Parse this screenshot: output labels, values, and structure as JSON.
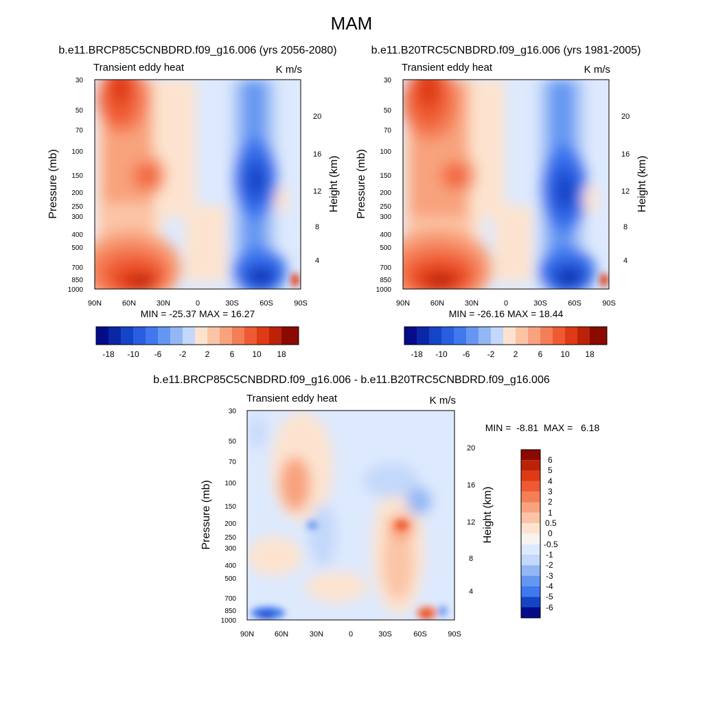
{
  "page": {
    "title": "MAM",
    "colors": {
      "blues": [
        "#050c8a",
        "#0b27a6",
        "#1545c6",
        "#2a5ee0",
        "#3f78ef",
        "#6597f2",
        "#93b7f5",
        "#c3d8fa",
        "#dde9fd"
      ],
      "reds": [
        "#fde3cf",
        "#fbc4a6",
        "#f8a37d",
        "#f47e56",
        "#ee5a33",
        "#de3a16",
        "#bb2208",
        "#8b0a00"
      ],
      "neutral": "#f7f3ee"
    }
  },
  "chart_data": [
    {
      "type": "heatmap",
      "subtitle": "b.e11.BRCP85C5CNBDRD.f09_g16.006 (yrs 2056-2080)",
      "left_label": "Transient eddy heat",
      "right_label": "K m/s",
      "ylabel": "Pressure (mb)",
      "y2label": "Height (km)",
      "x_ticks": [
        "90N",
        "60N",
        "30N",
        "0",
        "30S",
        "60S",
        "90S"
      ],
      "y_ticks": [
        "30",
        "50",
        "70",
        "100",
        "150",
        "200",
        "250",
        "300",
        "400",
        "500",
        "700",
        "850",
        "1000"
      ],
      "y2_ticks": [
        "20",
        "16",
        "12",
        "8",
        "4"
      ],
      "stats": "MIN = -25.37  MAX = 16.27",
      "colorbar_labels": [
        "-18",
        "-10",
        "-6",
        "-2",
        "2",
        "6",
        "10",
        "18"
      ],
      "features": [
        {
          "lat": 70,
          "p": 35,
          "value": 14
        },
        {
          "lat": 50,
          "p": 150,
          "value": 12
        },
        {
          "lat": 55,
          "p": 850,
          "value": 16
        },
        {
          "lat": -50,
          "p": 150,
          "value": -25
        },
        {
          "lat": -50,
          "p": 850,
          "value": -22
        }
      ]
    },
    {
      "type": "heatmap",
      "subtitle": "b.e11.B20TRC5CNBDRD.f09_g16.006 (yrs 1981-2005)",
      "left_label": "Transient eddy heat",
      "right_label": "K m/s",
      "ylabel": "Pressure (mb)",
      "y2label": "Height (km)",
      "x_ticks": [
        "90N",
        "60N",
        "30N",
        "0",
        "30S",
        "60S",
        "90S"
      ],
      "y_ticks": [
        "30",
        "50",
        "70",
        "100",
        "150",
        "200",
        "250",
        "300",
        "400",
        "500",
        "700",
        "850",
        "1000"
      ],
      "y2_ticks": [
        "20",
        "16",
        "12",
        "8",
        "4"
      ],
      "stats": "MIN = -26.16  MAX = 18.44",
      "colorbar_labels": [
        "-18",
        "-10",
        "-6",
        "-2",
        "2",
        "6",
        "10",
        "18"
      ],
      "features": [
        {
          "lat": 70,
          "p": 35,
          "value": 16
        },
        {
          "lat": 50,
          "p": 150,
          "value": 13
        },
        {
          "lat": 55,
          "p": 850,
          "value": 18
        },
        {
          "lat": -50,
          "p": 150,
          "value": -26
        },
        {
          "lat": -50,
          "p": 850,
          "value": -24
        }
      ]
    },
    {
      "type": "heatmap",
      "subtitle": "b.e11.BRCP85C5CNBDRD.f09_g16.006 - b.e11.B20TRC5CNBDRD.f09_g16.006",
      "left_label": "Transient eddy heat",
      "right_label": "K m/s",
      "ylabel": "Pressure (mb)",
      "y2label": "Height (km)",
      "x_ticks": [
        "90N",
        "60N",
        "30N",
        "0",
        "30S",
        "60S",
        "90S"
      ],
      "y_ticks": [
        "30",
        "50",
        "70",
        "100",
        "150",
        "200",
        "250",
        "300",
        "400",
        "500",
        "700",
        "850",
        "1000"
      ],
      "y2_ticks": [
        "20",
        "16",
        "12",
        "8",
        "4"
      ],
      "stats": "MIN =  -8.81  MAX =   6.18",
      "colorbar_labels": [
        "6",
        "5",
        "4",
        "3",
        "2",
        "1",
        "0.5",
        "0",
        "-0.5",
        "-1",
        "-2",
        "-3",
        "-4",
        "-5",
        "-6"
      ],
      "features": [
        {
          "lat": 50,
          "p": 110,
          "value": 2.5
        },
        {
          "lat": -45,
          "p": 200,
          "value": 3.5
        },
        {
          "lat": -45,
          "p": 550,
          "value": 2.5
        },
        {
          "lat": -60,
          "p": 950,
          "value": 6
        },
        {
          "lat": -40,
          "p": 130,
          "value": -1.5
        },
        {
          "lat": 80,
          "p": 980,
          "value": -4
        }
      ]
    }
  ]
}
